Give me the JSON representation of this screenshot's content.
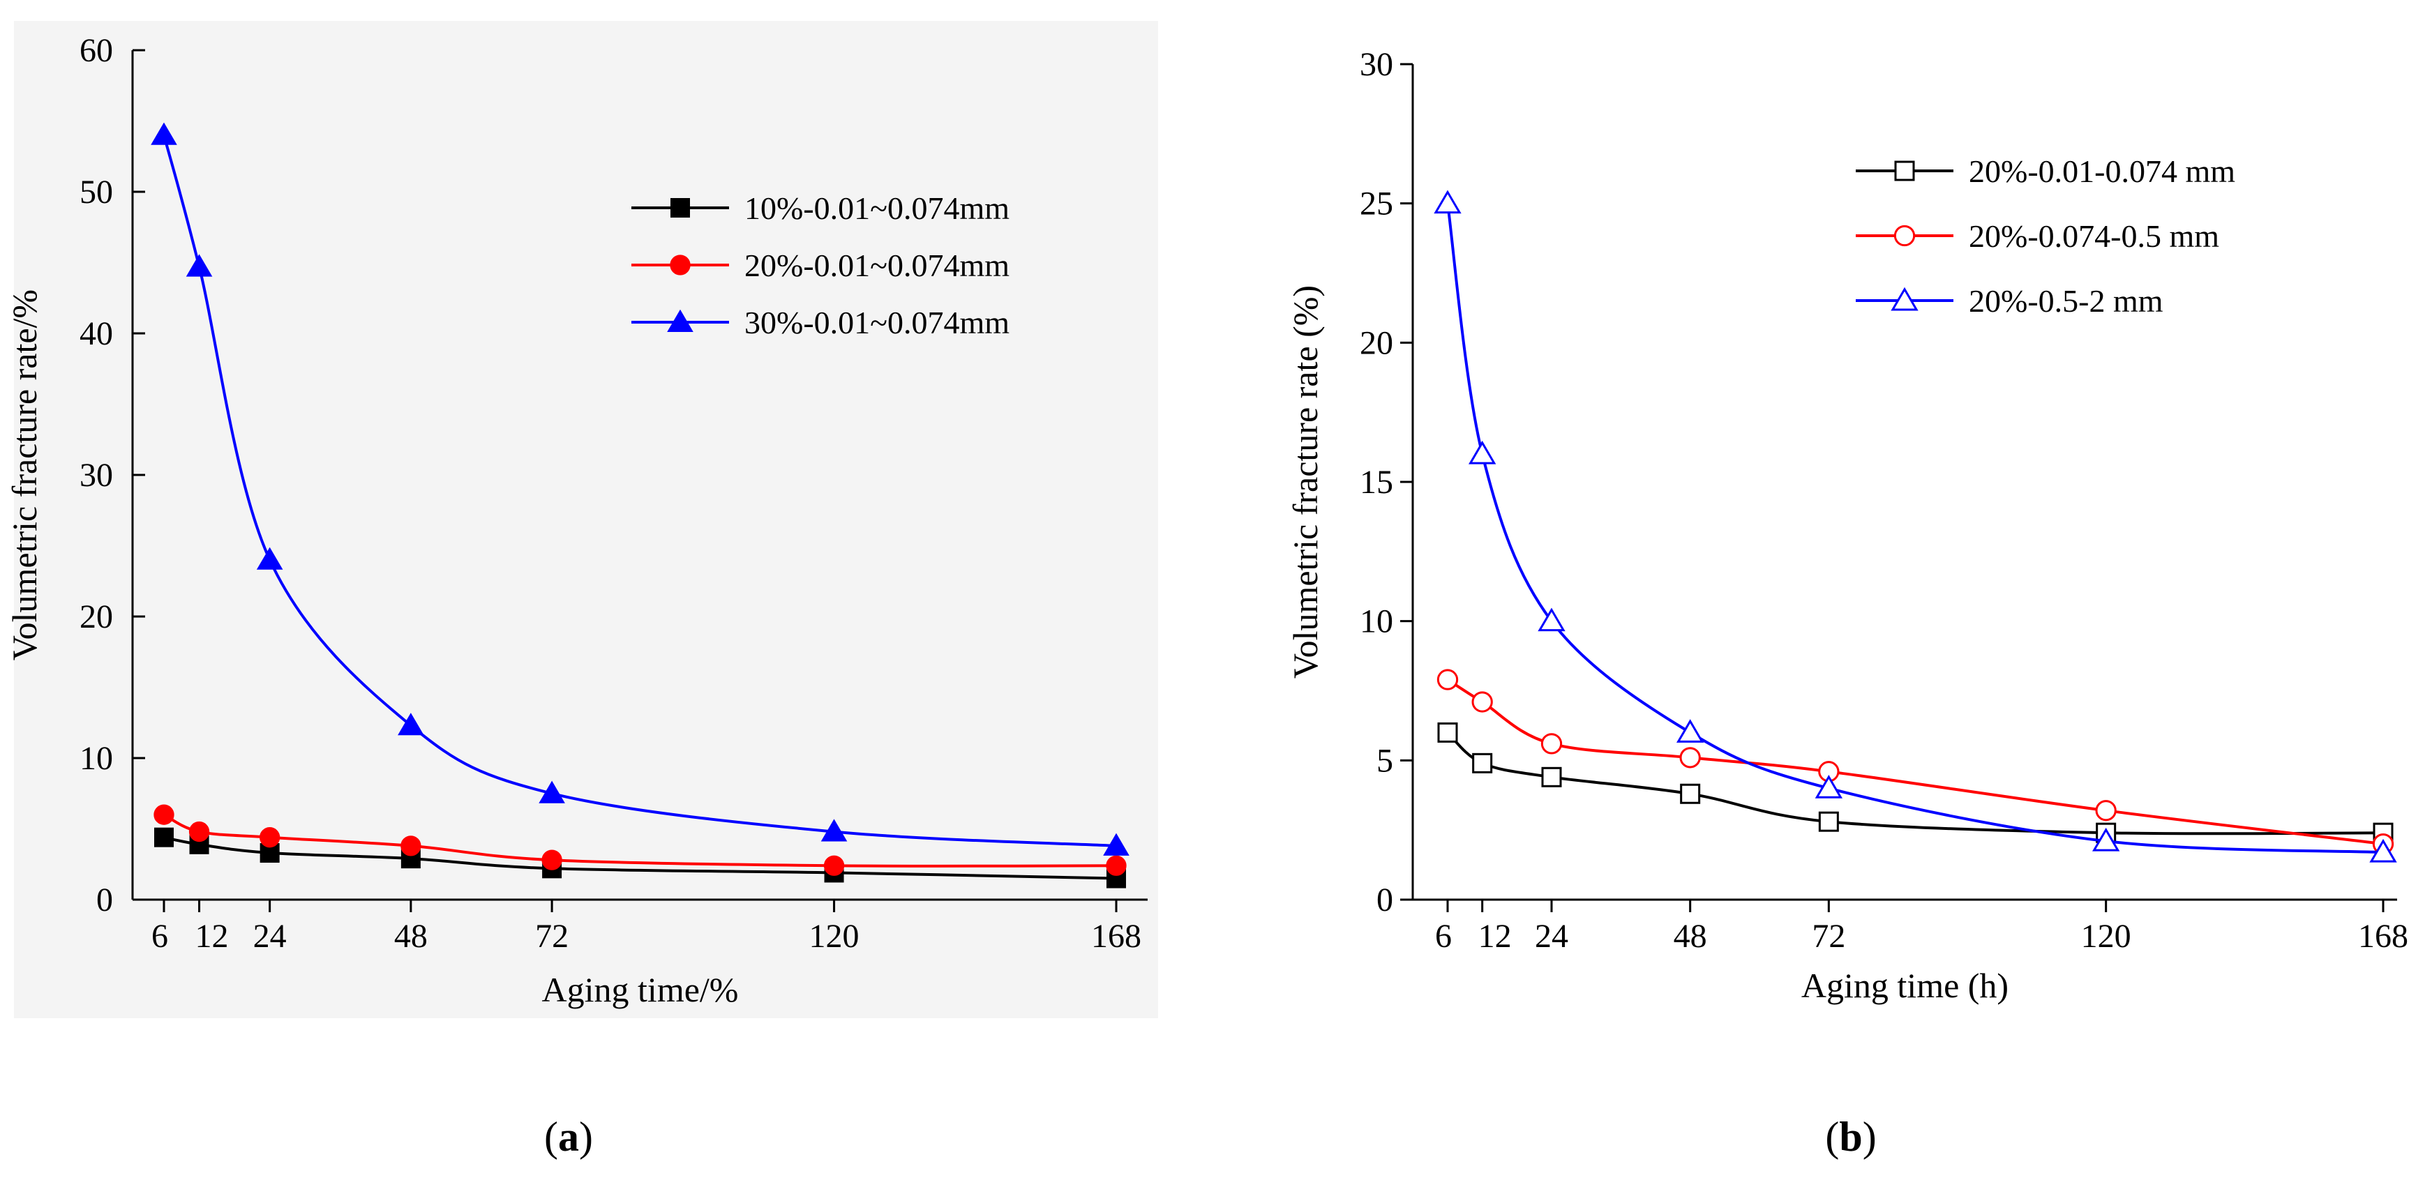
{
  "chart_data": [
    {
      "type": "line",
      "panel": "a",
      "panel_label": "a",
      "xlabel": "Aging time/%",
      "ylabel": "Volumetric fracture rate/%",
      "x": [
        6,
        12,
        24,
        48,
        72,
        120,
        168
      ],
      "x_ticks": [
        6,
        12,
        24,
        48,
        72,
        120,
        168
      ],
      "x_tick_labels": [
        "6",
        "12",
        "24",
        "48",
        "72",
        "120",
        "168"
      ],
      "xlim": [
        6,
        168
      ],
      "ylim": [
        0,
        60
      ],
      "y_ticks": [
        0,
        10,
        20,
        30,
        40,
        50,
        60
      ],
      "grid": false,
      "legend_position": "top-right",
      "series": [
        {
          "name": "10%-0.01~0.074mm",
          "color": "#000000",
          "marker": "square",
          "filled": true,
          "values": [
            4.4,
            3.9,
            3.3,
            2.9,
            2.2,
            1.9,
            1.5
          ]
        },
        {
          "name": "20%-0.01~0.074mm",
          "color": "#ff0000",
          "marker": "circle",
          "filled": true,
          "values": [
            6.0,
            4.8,
            4.4,
            3.8,
            2.8,
            2.4,
            2.4
          ]
        },
        {
          "name": "30%-0.01~0.074mm",
          "color": "#0000ff",
          "marker": "triangle",
          "filled": true,
          "values": [
            54.0,
            44.7,
            24.0,
            12.3,
            7.5,
            4.8,
            3.8
          ]
        }
      ]
    },
    {
      "type": "line",
      "panel": "b",
      "panel_label": "b",
      "xlabel": "Aging time (h)",
      "ylabel": "Volumetric fracture rate (%)",
      "x": [
        6,
        12,
        24,
        48,
        72,
        120,
        168
      ],
      "x_ticks": [
        6,
        12,
        24,
        48,
        72,
        120,
        168
      ],
      "x_tick_labels": [
        "6",
        "12",
        "24",
        "48",
        "72",
        "120",
        "168"
      ],
      "xlim": [
        6,
        168
      ],
      "ylim": [
        0,
        30
      ],
      "y_ticks": [
        0,
        5,
        10,
        15,
        20,
        25,
        30
      ],
      "grid": false,
      "legend_position": "top-right",
      "series": [
        {
          "name": "20%-0.01-0.074 mm",
          "color": "#000000",
          "marker": "square",
          "filled": false,
          "values": [
            6.0,
            4.9,
            4.4,
            3.8,
            2.8,
            2.4,
            2.4
          ]
        },
        {
          "name": "20%-0.074-0.5 mm",
          "color": "#ff0000",
          "marker": "circle",
          "filled": false,
          "values": [
            7.9,
            7.1,
            5.6,
            5.1,
            4.6,
            3.2,
            2.0
          ]
        },
        {
          "name": "20%-0.5-2 mm",
          "color": "#0000ff",
          "marker": "triangle",
          "filled": false,
          "values": [
            25.0,
            16.0,
            10.0,
            6.0,
            4.0,
            2.1,
            1.7
          ]
        }
      ]
    }
  ]
}
